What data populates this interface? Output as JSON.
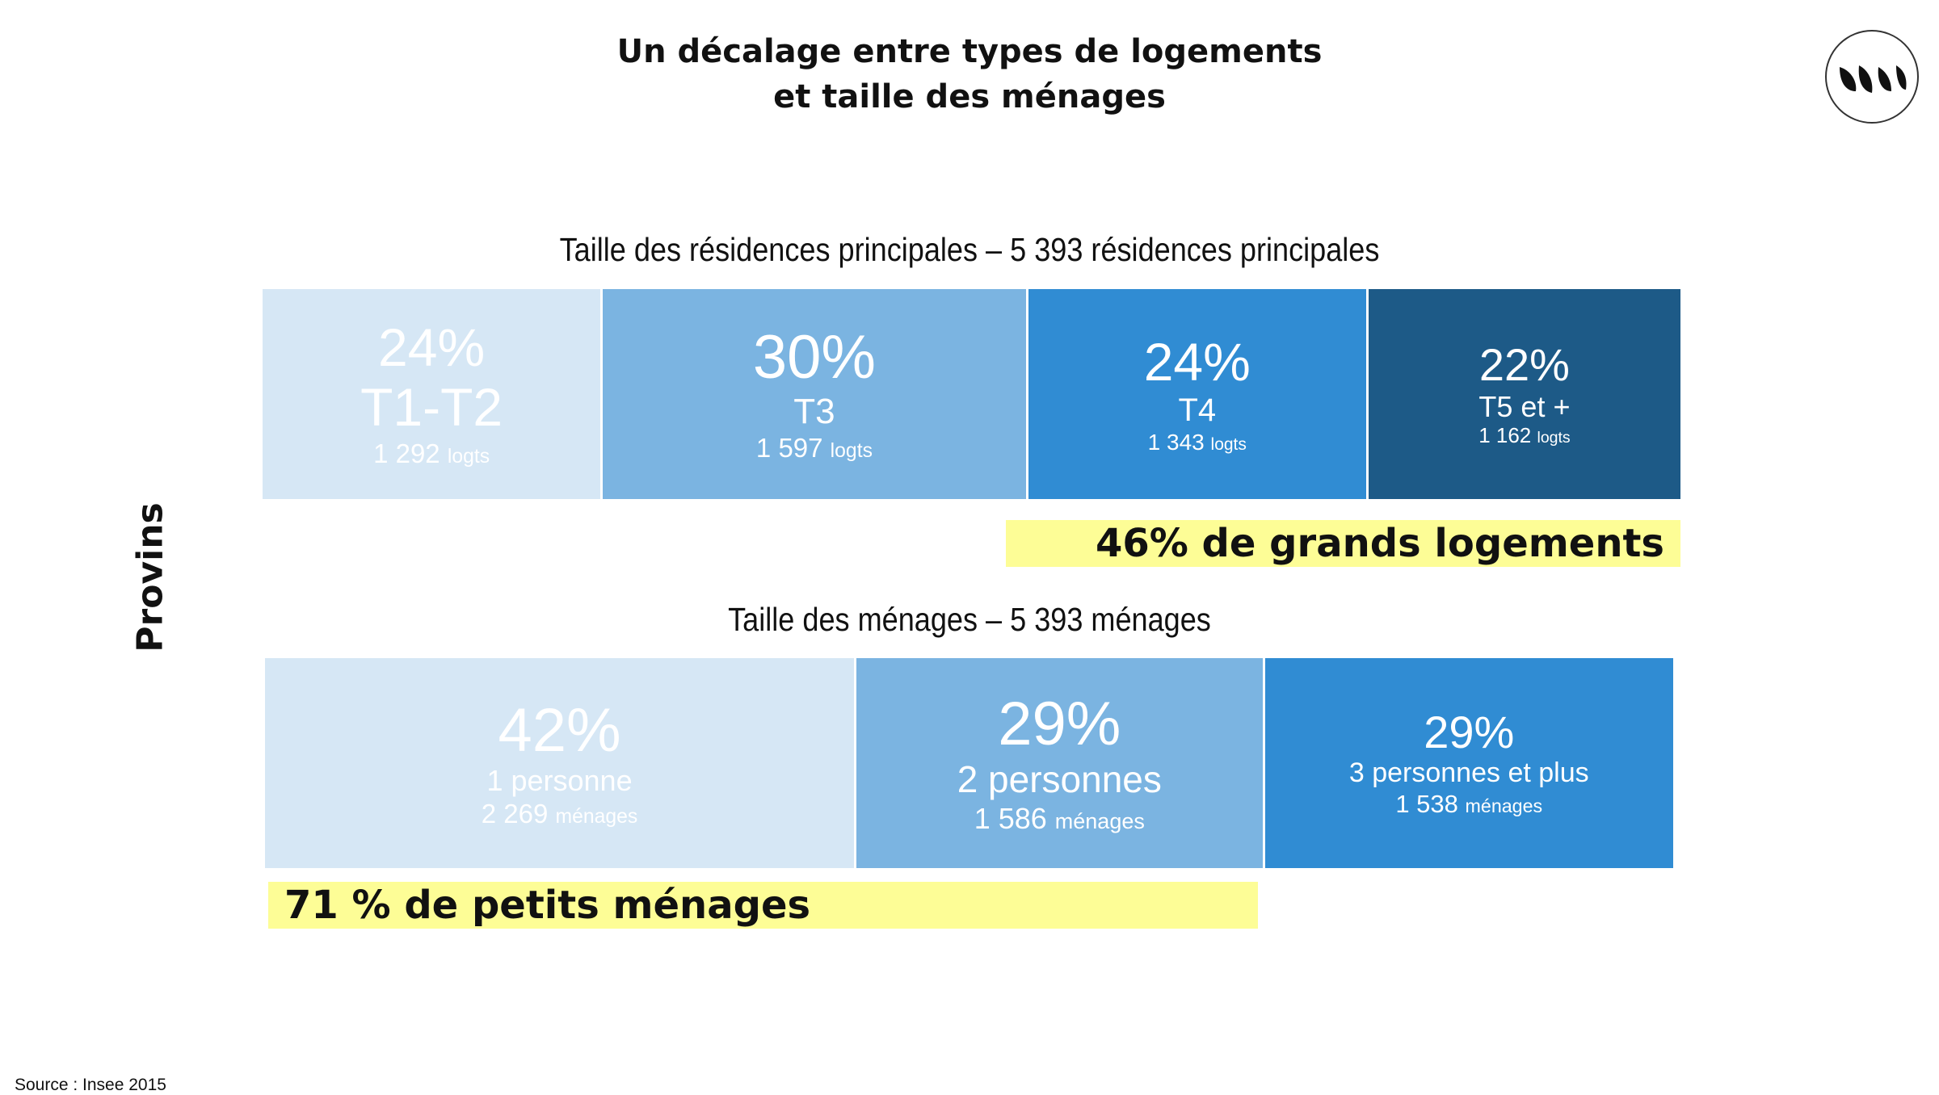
{
  "title_line1": "Un décalage entre types de logements",
  "title_line2": "et taille des ménages",
  "ylabel": "Provins",
  "source": "Source : Insee 2015",
  "logo_icon": "leaves-logo-icon",
  "colors": {
    "lightest": "#d6e7f5",
    "light": "#7bb4e1",
    "medium": "#308cd3",
    "dark": "#1d5a87",
    "highlight": "#fdfd96"
  },
  "chart_data": [
    {
      "type": "bar",
      "stacked": "horizontal-100%",
      "title": "Taille des résidences principales – 5 393 résidences principales",
      "segments": [
        {
          "percent_label": "24%",
          "label": "T1-T2",
          "count": "1 292",
          "unit": "logts",
          "value": 24
        },
        {
          "percent_label": "30%",
          "label": "T3",
          "count": "1 597",
          "unit": "logts",
          "value": 30
        },
        {
          "percent_label": "24%",
          "label": "T4",
          "count": "1 343",
          "unit": "logts",
          "value": 24
        },
        {
          "percent_label": "22%",
          "label": "T5 et +",
          "count": "1 162",
          "unit": "logts",
          "value": 22
        }
      ],
      "annotation": "46% de grands logements"
    },
    {
      "type": "bar",
      "stacked": "horizontal-100%",
      "title": "Taille des ménages – 5 393 ménages",
      "segments": [
        {
          "percent_label": "42%",
          "label": "1 personne",
          "count": "2 269",
          "unit": "ménages",
          "value": 42
        },
        {
          "percent_label": "29%",
          "label": "2 personnes",
          "count": "1 586",
          "unit": "ménages",
          "value": 29
        },
        {
          "percent_label": "29%",
          "label": "3 personnes et plus",
          "count": "1 538",
          "unit": "ménages",
          "value": 29
        }
      ],
      "annotation": "71 % de petits ménages"
    }
  ]
}
